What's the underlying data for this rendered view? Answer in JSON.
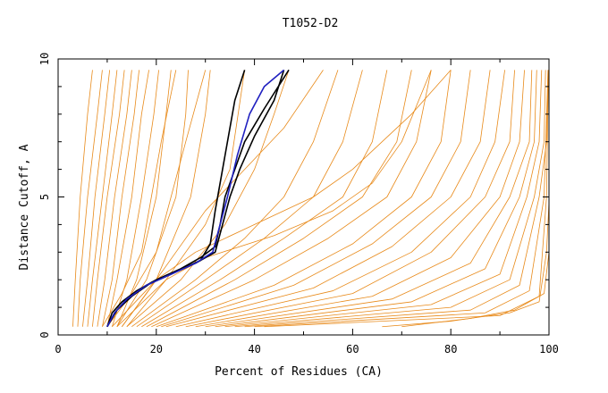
{
  "chart_data": {
    "type": "line",
    "title": "T1052-D2",
    "xlabel": "Percent of Residues (CA)",
    "ylabel": "Distance Cutoff, A",
    "xlim": [
      0,
      100
    ],
    "ylim": [
      0,
      10
    ],
    "x_ticks": [
      "0",
      "20",
      "40",
      "60",
      "80",
      "100"
    ],
    "y_ticks": [
      "0",
      "5",
      "10"
    ],
    "grid": false,
    "colors": {
      "orange": "#e88a1a",
      "black": "#000000",
      "blue": "#2020c0"
    },
    "series": [
      {
        "color": "orange",
        "points": [
          [
            3,
            0.3
          ],
          [
            3.5,
            2
          ],
          [
            4.5,
            5
          ],
          [
            6,
            8
          ],
          [
            7,
            9.6
          ]
        ]
      },
      {
        "color": "orange",
        "points": [
          [
            4,
            0.3
          ],
          [
            4.5,
            2
          ],
          [
            6,
            5
          ],
          [
            8,
            8
          ],
          [
            9,
            9.6
          ]
        ]
      },
      {
        "color": "orange",
        "points": [
          [
            5,
            0.3
          ],
          [
            6,
            2
          ],
          [
            7.5,
            5
          ],
          [
            9.5,
            8
          ],
          [
            10.5,
            9.6
          ]
        ]
      },
      {
        "color": "orange",
        "points": [
          [
            6,
            0.3
          ],
          [
            7,
            2
          ],
          [
            9,
            5
          ],
          [
            11,
            8
          ],
          [
            12,
            9.6
          ]
        ]
      },
      {
        "color": "orange",
        "points": [
          [
            7,
            0.3
          ],
          [
            8,
            2
          ],
          [
            10,
            5
          ],
          [
            12.5,
            8
          ],
          [
            13.5,
            9.6
          ]
        ]
      },
      {
        "color": "orange",
        "points": [
          [
            8,
            0.3
          ],
          [
            9.5,
            2
          ],
          [
            11.5,
            5
          ],
          [
            14,
            8
          ],
          [
            15,
            9.6
          ]
        ]
      },
      {
        "color": "orange",
        "points": [
          [
            9,
            0.3
          ],
          [
            11,
            2
          ],
          [
            13,
            5
          ],
          [
            15.5,
            8
          ],
          [
            16.5,
            9.6
          ]
        ]
      },
      {
        "color": "orange",
        "points": [
          [
            10,
            0.3
          ],
          [
            12,
            2
          ],
          [
            15,
            5
          ],
          [
            17,
            8
          ],
          [
            18.5,
            9.6
          ]
        ]
      },
      {
        "color": "orange",
        "points": [
          [
            11,
            0.3
          ],
          [
            14,
            2
          ],
          [
            17,
            5
          ],
          [
            19.5,
            8
          ],
          [
            20.5,
            9.6
          ]
        ]
      },
      {
        "color": "orange",
        "points": [
          [
            12,
            0.3
          ],
          [
            16,
            2
          ],
          [
            20,
            5
          ],
          [
            22,
            8
          ],
          [
            23,
            9.6
          ]
        ]
      },
      {
        "color": "orange",
        "points": [
          [
            12,
            0.3
          ],
          [
            18,
            2
          ],
          [
            24,
            5
          ],
          [
            26,
            8
          ],
          [
            26.5,
            9.6
          ]
        ]
      },
      {
        "color": "orange",
        "points": [
          [
            13,
            0.3
          ],
          [
            20,
            2
          ],
          [
            27,
            5
          ],
          [
            30,
            8
          ],
          [
            31,
            9.6
          ]
        ]
      },
      {
        "color": "orange",
        "points": [
          [
            14,
            0.3
          ],
          [
            22,
            2
          ],
          [
            30,
            4
          ],
          [
            35,
            6
          ],
          [
            38,
            9.6
          ]
        ]
      },
      {
        "color": "orange",
        "points": [
          [
            14,
            0.3
          ],
          [
            25,
            2
          ],
          [
            34,
            4
          ],
          [
            40,
            6
          ],
          [
            44,
            8
          ],
          [
            47,
            9.6
          ]
        ]
      },
      {
        "color": "orange",
        "points": [
          [
            15,
            0.3
          ],
          [
            28,
            2
          ],
          [
            38,
            3.5
          ],
          [
            46,
            5
          ],
          [
            52,
            7
          ],
          [
            57,
            9.6
          ]
        ]
      },
      {
        "color": "orange",
        "points": [
          [
            16,
            0.3
          ],
          [
            30,
            2
          ],
          [
            42,
            3.5
          ],
          [
            52,
            5
          ],
          [
            58,
            7
          ],
          [
            62,
            9.6
          ]
        ]
      },
      {
        "color": "orange",
        "points": [
          [
            17,
            0.3
          ],
          [
            33,
            2
          ],
          [
            46,
            3.5
          ],
          [
            58,
            5
          ],
          [
            64,
            7
          ],
          [
            67,
            9.6
          ]
        ]
      },
      {
        "color": "orange",
        "points": [
          [
            18,
            0.3
          ],
          [
            36,
            2
          ],
          [
            50,
            3.5
          ],
          [
            62,
            5
          ],
          [
            69,
            7
          ],
          [
            72,
            9.6
          ]
        ]
      },
      {
        "color": "orange",
        "points": [
          [
            19,
            0.3
          ],
          [
            40,
            2
          ],
          [
            55,
            3.5
          ],
          [
            67,
            5
          ],
          [
            73,
            7
          ],
          [
            76,
            9.6
          ]
        ]
      },
      {
        "color": "orange",
        "points": [
          [
            20,
            0.3
          ],
          [
            44,
            1.8
          ],
          [
            60,
            3.3
          ],
          [
            72,
            5
          ],
          [
            78,
            7
          ],
          [
            80,
            9.6
          ]
        ]
      },
      {
        "color": "orange",
        "points": [
          [
            21,
            0.3
          ],
          [
            48,
            1.8
          ],
          [
            64,
            3.3
          ],
          [
            76,
            5
          ],
          [
            82,
            7
          ],
          [
            84,
            9.6
          ]
        ]
      },
      {
        "color": "orange",
        "points": [
          [
            22,
            0.3
          ],
          [
            52,
            1.7
          ],
          [
            68,
            3.2
          ],
          [
            80,
            5
          ],
          [
            86,
            7
          ],
          [
            88,
            9.6
          ]
        ]
      },
      {
        "color": "orange",
        "points": [
          [
            24,
            0.3
          ],
          [
            56,
            1.6
          ],
          [
            72,
            3
          ],
          [
            84,
            5
          ],
          [
            89,
            7
          ],
          [
            91,
            9.6
          ]
        ]
      },
      {
        "color": "orange",
        "points": [
          [
            26,
            0.3
          ],
          [
            60,
            1.5
          ],
          [
            76,
            3
          ],
          [
            87,
            5
          ],
          [
            92,
            7
          ],
          [
            93,
            9.6
          ]
        ]
      },
      {
        "color": "orange",
        "points": [
          [
            28,
            0.3
          ],
          [
            64,
            1.4
          ],
          [
            80,
            2.8
          ],
          [
            90,
            5
          ],
          [
            94,
            7
          ],
          [
            95,
            9.6
          ]
        ]
      },
      {
        "color": "orange",
        "points": [
          [
            30,
            0.3
          ],
          [
            68,
            1.3
          ],
          [
            84,
            2.6
          ],
          [
            92,
            5
          ],
          [
            96,
            7
          ],
          [
            96.5,
            9.6
          ]
        ]
      },
      {
        "color": "orange",
        "points": [
          [
            32,
            0.3
          ],
          [
            72,
            1.2
          ],
          [
            87,
            2.4
          ],
          [
            94,
            5
          ],
          [
            97,
            7
          ],
          [
            97.5,
            9.6
          ]
        ]
      },
      {
        "color": "orange",
        "points": [
          [
            34,
            0.3
          ],
          [
            76,
            1.1
          ],
          [
            90,
            2.2
          ],
          [
            95.5,
            5
          ],
          [
            98,
            7
          ],
          [
            98.5,
            9.6
          ]
        ]
      },
      {
        "color": "orange",
        "points": [
          [
            36,
            0.3
          ],
          [
            80,
            1.0
          ],
          [
            92,
            2.0
          ],
          [
            97,
            5
          ],
          [
            99,
            7
          ],
          [
            99.3,
            9.6
          ]
        ]
      },
      {
        "color": "orange",
        "points": [
          [
            38,
            0.3
          ],
          [
            84,
            0.9
          ],
          [
            94,
            1.8
          ],
          [
            98,
            5
          ],
          [
            99.5,
            7
          ],
          [
            99.8,
            9.6
          ]
        ]
      },
      {
        "color": "orange",
        "points": [
          [
            40,
            0.3
          ],
          [
            87,
            0.8
          ],
          [
            96,
            1.6
          ],
          [
            99,
            5
          ],
          [
            99.8,
            9.6
          ]
        ]
      },
      {
        "color": "orange",
        "points": [
          [
            42,
            0.3
          ],
          [
            90,
            0.7
          ],
          [
            98,
            1.4
          ],
          [
            99.5,
            5
          ],
          [
            99.9,
            9.6
          ]
        ]
      },
      {
        "color": "orange",
        "points": [
          [
            11,
            0.3
          ],
          [
            20,
            2
          ],
          [
            28,
            3
          ],
          [
            40,
            4
          ],
          [
            52,
            5
          ],
          [
            60,
            6
          ],
          [
            66,
            7
          ],
          [
            72,
            8
          ],
          [
            80,
            9.6
          ]
        ]
      },
      {
        "color": "orange",
        "points": [
          [
            12,
            0.3
          ],
          [
            22,
            2
          ],
          [
            30,
            2.8
          ],
          [
            44,
            3.6
          ],
          [
            56,
            4.5
          ],
          [
            64,
            5.5
          ],
          [
            70,
            7
          ],
          [
            76,
            9.6
          ]
        ]
      },
      {
        "color": "orange",
        "points": [
          [
            10,
            0.3
          ],
          [
            15,
            1.5
          ],
          [
            20,
            3
          ],
          [
            23,
            5
          ],
          [
            26,
            7
          ],
          [
            30,
            9.6
          ]
        ]
      },
      {
        "color": "orange",
        "points": [
          [
            9,
            0.3
          ],
          [
            13,
            1.5
          ],
          [
            17,
            3
          ],
          [
            19,
            5
          ],
          [
            21,
            7
          ],
          [
            24,
            9.6
          ]
        ]
      },
      {
        "color": "orange",
        "points": [
          [
            13,
            0.3
          ],
          [
            18,
            1.5
          ],
          [
            24,
            3
          ],
          [
            30,
            4.5
          ],
          [
            38,
            6
          ],
          [
            46,
            7.5
          ],
          [
            54,
            9.6
          ]
        ]
      },
      {
        "color": "orange",
        "points": [
          [
            66,
            0.3
          ],
          [
            80,
            0.5
          ],
          [
            92,
            0.8
          ],
          [
            98,
            1.2
          ],
          [
            99.5,
            3
          ],
          [
            100,
            4.8
          ]
        ]
      },
      {
        "color": "orange",
        "points": [
          [
            70,
            0.3
          ],
          [
            84,
            0.6
          ],
          [
            93,
            0.9
          ],
          [
            99,
            1.5
          ],
          [
            100,
            3
          ]
        ]
      },
      {
        "color": "black",
        "points": [
          [
            10,
            0.3
          ],
          [
            11,
            0.8
          ],
          [
            13,
            1.2
          ],
          [
            16,
            1.6
          ],
          [
            20,
            2
          ],
          [
            25,
            2.4
          ],
          [
            29,
            2.8
          ],
          [
            32,
            3.2
          ],
          [
            33,
            4
          ],
          [
            34,
            5
          ],
          [
            36,
            6
          ],
          [
            38,
            7
          ],
          [
            42,
            8.2
          ],
          [
            47,
            9.6
          ]
        ]
      },
      {
        "color": "black",
        "points": [
          [
            10,
            0.3
          ],
          [
            11.5,
            0.8
          ],
          [
            14,
            1.3
          ],
          [
            18,
            1.8
          ],
          [
            23,
            2.2
          ],
          [
            28,
            2.6
          ],
          [
            32,
            3
          ],
          [
            33.5,
            4
          ],
          [
            35,
            5
          ],
          [
            37,
            6
          ],
          [
            40,
            7.2
          ],
          [
            44,
            8.5
          ],
          [
            46,
            9.6
          ]
        ]
      },
      {
        "color": "black",
        "points": [
          [
            10,
            0.3
          ],
          [
            12,
            0.9
          ],
          [
            15,
            1.4
          ],
          [
            19,
            1.9
          ],
          [
            24,
            2.3
          ],
          [
            29,
            2.7
          ],
          [
            31,
            3.3
          ],
          [
            32,
            4.5
          ],
          [
            33,
            5.5
          ],
          [
            34,
            6.5
          ],
          [
            35,
            7.5
          ],
          [
            36,
            8.5
          ],
          [
            38,
            9.6
          ]
        ]
      },
      {
        "color": "blue",
        "points": [
          [
            10,
            0.3
          ],
          [
            11.5,
            0.8
          ],
          [
            14,
            1.3
          ],
          [
            18,
            1.8
          ],
          [
            23,
            2.2
          ],
          [
            28,
            2.6
          ],
          [
            31.5,
            3
          ],
          [
            33,
            4
          ],
          [
            34.5,
            5
          ],
          [
            36.5,
            6.5
          ],
          [
            39,
            8
          ],
          [
            42,
            9
          ],
          [
            46,
            9.6
          ]
        ]
      }
    ]
  }
}
